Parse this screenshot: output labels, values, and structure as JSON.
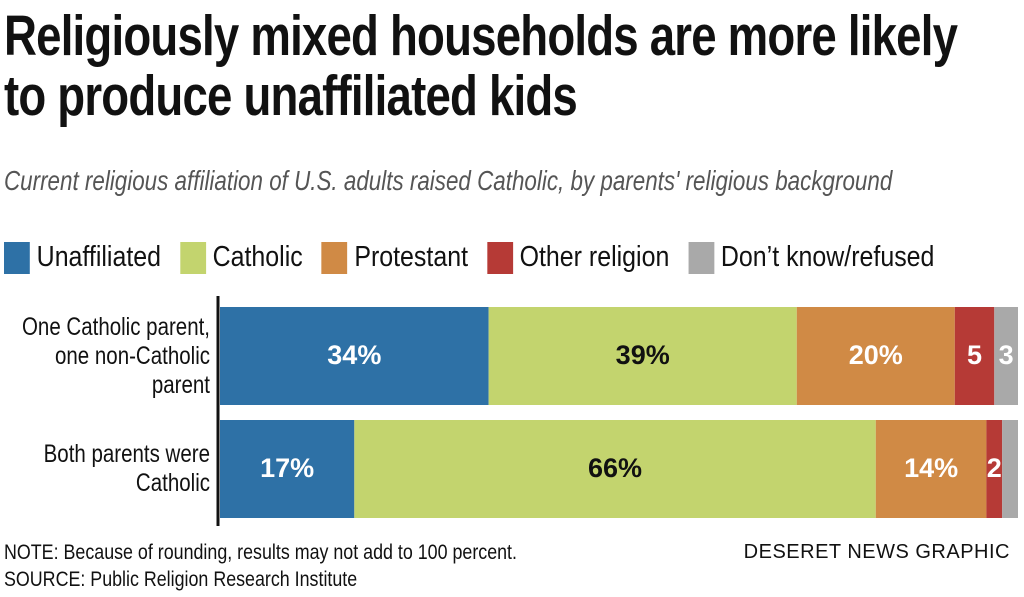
{
  "chart_data": {
    "type": "stacked-bar",
    "orientation": "horizontal",
    "title": "Religiously mixed households are more likely to produce unaffiliated kids",
    "subtitle": "Current religious affiliation of U.S. adults raised Catholic, by parents' religious background",
    "categories": [
      "One Catholic parent, one non-Catholic parent",
      "Both parents were Catholic"
    ],
    "series": [
      {
        "name": "Unaffiliated",
        "color": "#2e71a6",
        "label_color": "#ffffff",
        "values": [
          34,
          17
        ],
        "value_labels": [
          "34%",
          "17%"
        ]
      },
      {
        "name": "Catholic",
        "color": "#c3d46e",
        "label_color": "#111111",
        "values": [
          39,
          66
        ],
        "value_labels": [
          "39%",
          "66%"
        ]
      },
      {
        "name": "Protestant",
        "color": "#d08a45",
        "label_color": "#ffffff",
        "values": [
          20,
          14
        ],
        "value_labels": [
          "20%",
          "14%"
        ]
      },
      {
        "name": "Other religion",
        "color": "#b63a36",
        "label_color": "#ffffff",
        "values": [
          5,
          2
        ],
        "value_labels": [
          "5",
          "2"
        ]
      },
      {
        "name": "Don’t know/refused",
        "color": "#a9a9a9",
        "label_color": "#ffffff",
        "values": [
          3,
          2
        ],
        "value_labels": [
          "3",
          null
        ]
      }
    ],
    "xlim": [
      0,
      101
    ],
    "note": "NOTE: Because of rounding, results may not add to 100 percent.",
    "source": "SOURCE: Public Religion Research Institute",
    "credit": "DESERET NEWS GRAPHIC"
  }
}
